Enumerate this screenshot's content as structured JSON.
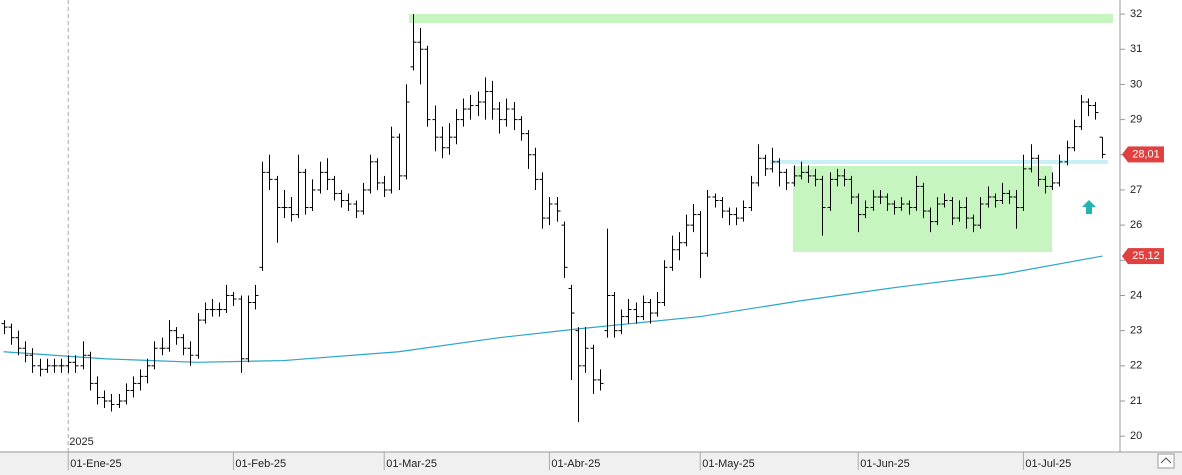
{
  "chart_data": {
    "type": "ohlc",
    "color": "#000000",
    "categories": [
      null,
      null,
      null,
      null,
      null,
      null,
      null,
      null,
      null,
      "01-Ene-25",
      null,
      null,
      null,
      null,
      null,
      null,
      null,
      null,
      null,
      null,
      null,
      null,
      null,
      null,
      null,
      null,
      null,
      null,
      null,
      null,
      null,
      null,
      "01-Feb-25",
      null,
      null,
      null,
      null,
      null,
      null,
      null,
      null,
      null,
      null,
      null,
      null,
      null,
      null,
      null,
      null,
      null,
      null,
      null,
      null,
      "01-Mar-25",
      null,
      null,
      null,
      null,
      null,
      null,
      null,
      null,
      null,
      null,
      null,
      null,
      null,
      null,
      null,
      null,
      null,
      null,
      null,
      null,
      null,
      null,
      "01-Abr-25",
      null,
      null,
      null,
      null,
      null,
      null,
      null,
      null,
      null,
      null,
      null,
      null,
      null,
      null,
      null,
      null,
      null,
      null,
      null,
      null,
      "01-May-25",
      null,
      null,
      null,
      null,
      null,
      null,
      null,
      null,
      null,
      null,
      null,
      null,
      null,
      null,
      null,
      null,
      null,
      null,
      null,
      null,
      null,
      "01-Jun-25",
      null,
      null,
      null,
      null,
      null,
      null,
      null,
      null,
      null,
      null,
      null,
      null,
      null,
      null,
      null,
      null,
      null,
      null,
      null,
      null,
      null,
      null,
      "01-Jul-25",
      null,
      null,
      null,
      null,
      null,
      null,
      null,
      null,
      null,
      null,
      null
    ],
    "open": [
      23.2,
      23.1,
      22.8,
      22.5,
      22.3,
      22.0,
      21.9,
      22.0,
      22.0,
      22.0,
      22.1,
      22.0,
      22.3,
      21.5,
      21.1,
      21.0,
      20.9,
      21.0,
      21.3,
      21.5,
      21.7,
      22.0,
      22.5,
      22.5,
      23.0,
      22.8,
      22.5,
      22.3,
      23.3,
      23.6,
      23.6,
      23.6,
      24.0,
      23.9,
      22.2,
      23.8,
      24.8,
      27.5,
      27.3,
      26.5,
      26.5,
      26.3,
      27.5,
      26.5,
      27.0,
      27.5,
      27.3,
      26.9,
      26.7,
      26.6,
      26.4,
      27.0,
      27.8,
      27.2,
      27.0,
      28.5,
      27.4,
      30.5,
      31.2,
      31.0,
      29.0,
      28.5,
      28.2,
      28.5,
      29.0,
      29.3,
      29.4,
      29.5,
      29.8,
      29.3,
      29.0,
      29.3,
      29.0,
      28.6,
      28.0,
      27.3,
      26.2,
      26.6,
      26.0,
      24.2,
      23.0,
      22.0,
      22.5,
      21.6,
      23.0,
      24.0,
      23.0,
      23.4,
      23.6,
      23.4,
      23.8,
      23.5,
      23.8,
      24.8,
      25.3,
      25.5,
      26.0,
      26.3,
      25.2,
      26.8,
      26.7,
      26.4,
      26.3,
      26.2,
      26.5,
      27.2,
      27.9,
      27.6,
      27.8,
      27.5,
      27.2,
      27.4,
      27.5,
      27.4,
      27.3,
      26.5,
      27.3,
      27.4,
      27.3,
      26.8,
      26.3,
      26.5,
      26.8,
      26.8,
      26.6,
      26.5,
      26.6,
      26.5,
      27.1,
      26.4,
      26.1,
      26.6,
      26.7,
      26.2,
      26.5,
      26.2,
      26.0,
      26.6,
      26.8,
      26.7,
      26.9,
      26.8,
      26.5,
      27.6,
      27.9,
      27.3,
      27.1,
      27.2,
      27.8,
      28.2,
      28.8,
      29.5,
      29.4,
      28.5
    ],
    "high": [
      23.3,
      23.2,
      23.0,
      22.7,
      22.5,
      22.2,
      22.2,
      22.2,
      22.2,
      22.3,
      22.3,
      22.7,
      22.4,
      21.7,
      21.3,
      21.2,
      21.2,
      21.5,
      21.7,
      21.9,
      22.2,
      22.7,
      22.8,
      23.3,
      23.1,
      22.9,
      22.7,
      23.5,
      23.8,
      23.9,
      23.8,
      24.3,
      24.1,
      24.0,
      24.0,
      24.3,
      27.8,
      28.0,
      27.4,
      27.0,
      26.8,
      28.0,
      27.6,
      27.3,
      27.8,
      27.9,
      27.4,
      27.0,
      26.9,
      26.7,
      27.2,
      28.0,
      27.9,
      27.4,
      28.8,
      28.6,
      30.0,
      32.0,
      31.6,
      31.1,
      29.4,
      28.8,
      28.9,
      29.3,
      29.6,
      29.7,
      29.8,
      30.2,
      30.1,
      29.5,
      29.6,
      29.5,
      29.1,
      28.7,
      28.2,
      27.5,
      26.8,
      26.8,
      26.1,
      24.3,
      23.1,
      23.1,
      22.6,
      21.9,
      25.9,
      24.1,
      23.6,
      23.9,
      23.8,
      24.0,
      23.9,
      24.1,
      25.0,
      25.7,
      25.8,
      26.3,
      26.6,
      26.4,
      27.0,
      26.9,
      26.8,
      26.5,
      26.5,
      26.7,
      27.4,
      28.3,
      28.0,
      28.2,
      27.9,
      27.6,
      27.7,
      27.8,
      27.7,
      27.6,
      27.4,
      27.5,
      27.6,
      27.6,
      27.4,
      26.9,
      26.7,
      27.0,
      27.0,
      26.9,
      26.7,
      26.8,
      26.7,
      27.4,
      27.2,
      26.5,
      26.8,
      26.9,
      26.8,
      26.7,
      26.8,
      26.3,
      26.8,
      27.1,
      26.9,
      27.2,
      27.0,
      27.0,
      28.0,
      28.3,
      28.0,
      27.4,
      27.5,
      28.0,
      28.4,
      29.0,
      29.7,
      29.6,
      29.5,
      28.5
    ],
    "low": [
      22.9,
      22.6,
      22.3,
      22.1,
      21.8,
      21.7,
      21.8,
      21.8,
      21.8,
      21.8,
      21.8,
      21.9,
      21.3,
      20.9,
      20.8,
      20.7,
      20.8,
      20.9,
      21.1,
      21.3,
      21.5,
      21.9,
      22.3,
      22.4,
      22.6,
      22.3,
      22.0,
      22.2,
      23.2,
      23.4,
      23.4,
      23.5,
      23.7,
      21.8,
      22.1,
      23.6,
      24.7,
      27.0,
      25.5,
      26.2,
      26.1,
      26.2,
      26.3,
      26.4,
      26.9,
      27.0,
      26.7,
      26.5,
      26.4,
      26.2,
      26.3,
      26.9,
      27.0,
      26.8,
      26.9,
      27.0,
      27.3,
      30.4,
      30.0,
      28.8,
      28.1,
      27.9,
      28.0,
      28.3,
      28.8,
      29.0,
      29.1,
      29.0,
      29.0,
      28.6,
      28.8,
      28.7,
      28.4,
      27.6,
      27.0,
      25.9,
      26.0,
      26.1,
      24.5,
      21.6,
      20.4,
      21.8,
      21.2,
      21.3,
      22.8,
      22.8,
      22.9,
      23.2,
      23.2,
      23.3,
      23.2,
      23.4,
      23.7,
      24.7,
      25.0,
      25.4,
      25.8,
      24.5,
      25.1,
      26.5,
      26.2,
      26.0,
      26.0,
      26.1,
      26.4,
      27.1,
      27.4,
      27.5,
      27.1,
      27.0,
      27.1,
      27.3,
      27.2,
      27.1,
      25.7,
      26.4,
      27.1,
      27.1,
      26.6,
      25.8,
      26.2,
      26.4,
      26.6,
      26.4,
      26.3,
      26.4,
      26.3,
      26.4,
      26.2,
      25.8,
      26.0,
      26.5,
      26.0,
      26.1,
      25.9,
      25.8,
      25.9,
      26.5,
      26.5,
      26.6,
      26.6,
      25.9,
      26.4,
      27.5,
      27.1,
      26.9,
      27.0,
      27.1,
      27.7,
      28.1,
      28.7,
      29.1,
      29.0,
      27.9
    ],
    "close": [
      23.1,
      22.8,
      22.5,
      22.3,
      22.0,
      21.9,
      22.0,
      22.0,
      22.0,
      22.1,
      22.0,
      22.3,
      21.5,
      21.1,
      21.0,
      20.9,
      21.0,
      21.3,
      21.5,
      21.7,
      22.0,
      22.5,
      22.5,
      23.0,
      22.8,
      22.5,
      22.3,
      23.3,
      23.6,
      23.6,
      23.6,
      24.0,
      23.9,
      22.2,
      23.8,
      24.0,
      27.5,
      27.3,
      26.5,
      26.5,
      26.3,
      27.5,
      26.5,
      27.0,
      27.5,
      27.3,
      26.9,
      26.7,
      26.6,
      26.4,
      27.0,
      27.8,
      27.2,
      27.0,
      28.5,
      27.4,
      29.5,
      31.2,
      31.0,
      29.0,
      28.5,
      28.2,
      28.5,
      29.0,
      29.3,
      29.4,
      29.5,
      29.8,
      29.3,
      29.0,
      29.3,
      29.0,
      28.6,
      28.0,
      27.3,
      26.2,
      26.6,
      26.4,
      24.8,
      23.5,
      22.0,
      22.5,
      21.6,
      21.5,
      24.0,
      23.0,
      23.4,
      23.6,
      23.4,
      23.8,
      23.5,
      23.8,
      24.8,
      25.3,
      25.5,
      26.0,
      26.3,
      25.2,
      26.8,
      26.7,
      26.4,
      26.3,
      26.2,
      26.5,
      27.2,
      27.9,
      27.6,
      27.8,
      27.5,
      27.2,
      27.4,
      27.5,
      27.4,
      27.3,
      26.5,
      27.3,
      27.4,
      27.3,
      26.8,
      26.3,
      26.5,
      26.8,
      26.8,
      26.6,
      26.5,
      26.6,
      26.5,
      27.1,
      26.4,
      26.1,
      26.6,
      26.7,
      26.2,
      26.5,
      26.2,
      26.0,
      26.6,
      26.8,
      26.7,
      26.9,
      26.8,
      26.5,
      27.6,
      27.9,
      27.3,
      27.1,
      27.2,
      27.8,
      28.2,
      28.8,
      29.5,
      29.4,
      29.2,
      28.01
    ],
    "moving_average": {
      "color": "#2aa6c9",
      "x": [
        0,
        14,
        27,
        39,
        55,
        69,
        80,
        97,
        111,
        125,
        139,
        153
      ],
      "values": [
        22.4,
        22.2,
        22.1,
        22.15,
        22.4,
        22.8,
        23.05,
        23.4,
        23.85,
        24.25,
        24.6,
        25.12
      ]
    },
    "year_label": "2025",
    "price_tags": [
      {
        "value": 28.01,
        "label": "28,01",
        "color": "#e0413f"
      },
      {
        "value": 25.12,
        "label": "25,12",
        "color": "#e0413f"
      }
    ],
    "ylim": [
      19.55,
      32.4
    ],
    "yticks": [
      20,
      21,
      22,
      23,
      24,
      25,
      26,
      27,
      28,
      29,
      30,
      31,
      32
    ]
  }
}
